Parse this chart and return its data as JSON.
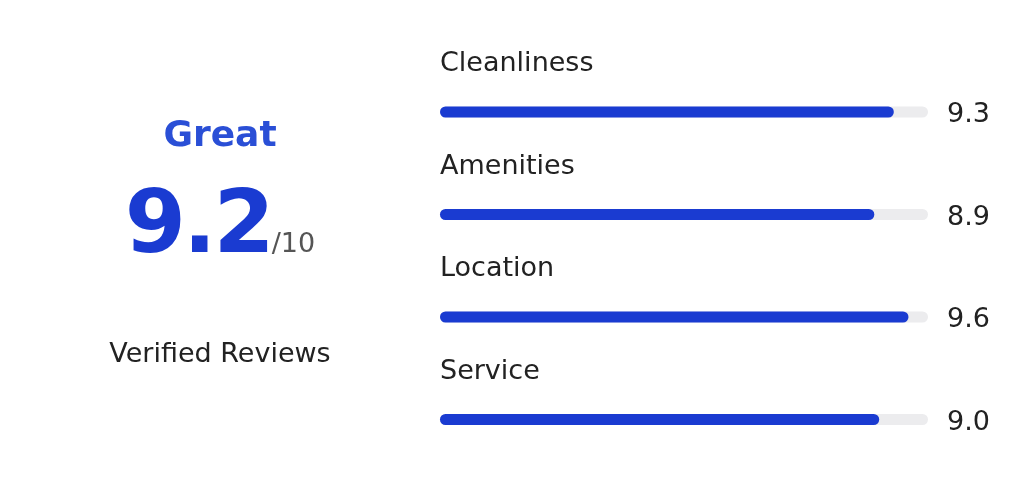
{
  "chart_data": [
    {
      "type": "other",
      "title": "Great",
      "annotations": [
        "9.2",
        "/10",
        "Verified Reviews"
      ]
    },
    {
      "type": "bar",
      "orientation": "horizontal",
      "categories": [
        "Cleanliness",
        "Amenities",
        "Location",
        "Service"
      ],
      "values": [
        9.3,
        8.9,
        9.6,
        9.0
      ],
      "value_labels": [
        "9.3",
        "8.9",
        "9.6",
        "9.0"
      ],
      "color": "#1a3bd1",
      "xlim": [
        0,
        10
      ],
      "tick_labels": "y"
    }
  ]
}
